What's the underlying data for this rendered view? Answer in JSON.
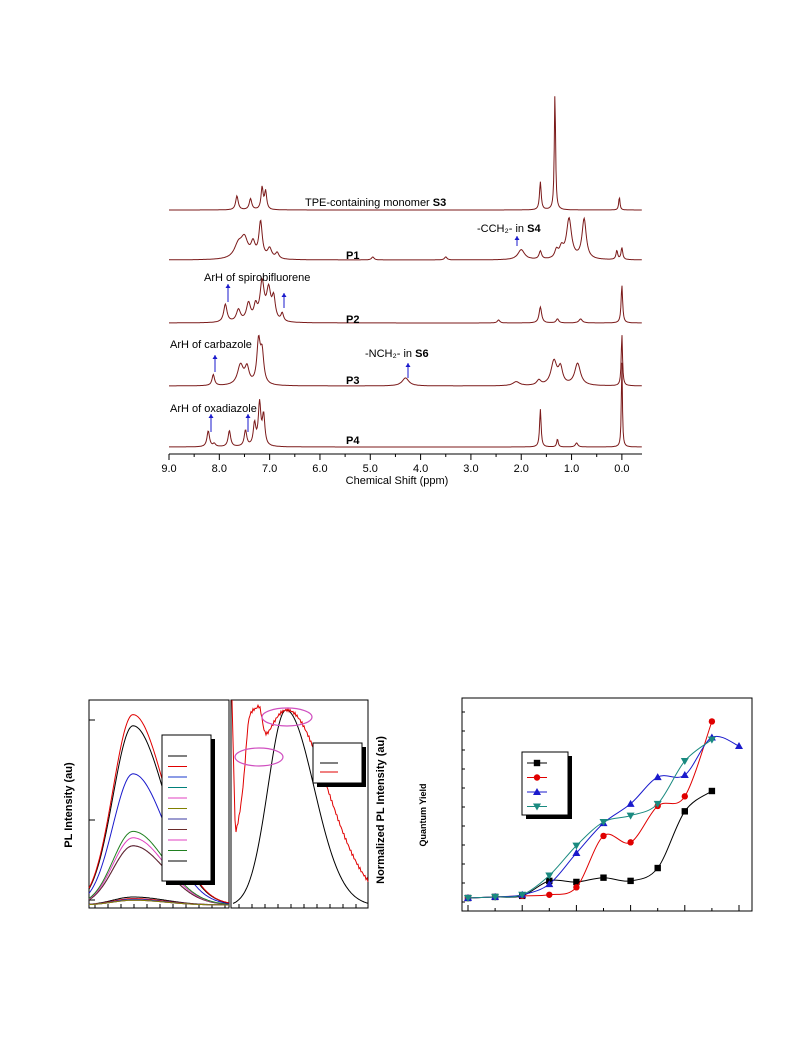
{
  "colors": {
    "nmr": "#7b1a1a",
    "arrow": "#1a1acc",
    "ellipse": "#d050c0"
  },
  "chart_data": [
    {
      "type": "line",
      "xlabel": "Chemical Shift   (ppm)",
      "xlim": [
        9.0,
        -0.4
      ],
      "ticks": [
        "9.0",
        "8.0",
        "7.0",
        "6.0",
        "5.0",
        "4.0",
        "3.0",
        "2.0",
        "1.0",
        "0.0"
      ],
      "series": [
        {
          "name": "TPE-containing monomer S3",
          "annotation": {
            "text": "TPE-containing monomer ",
            "bold": "S3"
          }
        },
        {
          "name": "P1",
          "annotation": {
            "text": "-CCH₂- in ",
            "bold": "S4"
          }
        },
        {
          "name": "P2",
          "annotation": {
            "text": "ArH of spirobifluorene",
            "bold": ""
          }
        },
        {
          "name": "P3",
          "annotation": {
            "text": "ArH of carbazole",
            "bold": ""
          },
          "annotation2": {
            "text": "-NCH₂- in ",
            "bold": "S6"
          }
        },
        {
          "name": "P4",
          "annotation": {
            "text": "ArH of oxadiazole",
            "bold": ""
          }
        }
      ]
    },
    {
      "type": "line",
      "ylabel": "PL Intensity (au)",
      "series": [
        {
          "color": "#000000",
          "peak": 0.05
        },
        {
          "color": "#e00000",
          "peak": 0.04
        },
        {
          "color": "#1a3acc",
          "peak": 0.035
        },
        {
          "color": "#00807a",
          "peak": 0.03
        },
        {
          "color": "#e040c0",
          "peak": 0.03
        },
        {
          "color": "#808000",
          "peak": 0.03
        },
        {
          "color": "#3a3aa0",
          "peak": 0.37
        },
        {
          "color": "#6a2a2a",
          "peak": 0.37
        },
        {
          "color": "#e040c0",
          "peak": 0.42
        },
        {
          "color": "#208020",
          "peak": 0.46
        },
        {
          "color": "#1a1acc",
          "peak": 0.82
        },
        {
          "color": "#000000",
          "peak": 1.12
        },
        {
          "color": "#e00000",
          "peak": 1.19
        }
      ]
    },
    {
      "type": "line",
      "ylabel": "Normalized PL Intensity (au)",
      "series": [
        {
          "color": "#000000"
        },
        {
          "color": "#e00000"
        }
      ]
    },
    {
      "type": "line",
      "ylabel": "Quantum Yield",
      "x": [
        0,
        1,
        2,
        3,
        4,
        5,
        6,
        7,
        8,
        9,
        10
      ],
      "series": [
        {
          "color": "#000000",
          "marker": "square",
          "values": [
            0.0,
            0.01,
            0.02,
            0.16,
            0.15,
            0.19,
            0.16,
            0.28,
            0.81,
            1.0,
            null
          ]
        },
        {
          "color": "#e00000",
          "marker": "circle",
          "values": [
            0.0,
            0.01,
            0.02,
            0.03,
            0.1,
            0.58,
            0.52,
            0.86,
            0.95,
            1.65,
            null
          ]
        },
        {
          "color": "#1a1acc",
          "marker": "triangle",
          "values": [
            0.0,
            0.01,
            0.03,
            0.13,
            0.42,
            0.7,
            0.88,
            1.13,
            1.15,
            1.5,
            1.42
          ]
        },
        {
          "color": "#1a8a80",
          "marker": "triangle-down",
          "values": [
            0.0,
            0.01,
            0.03,
            0.21,
            0.49,
            0.71,
            0.77,
            0.88,
            1.28,
            1.48,
            null
          ]
        }
      ]
    }
  ]
}
